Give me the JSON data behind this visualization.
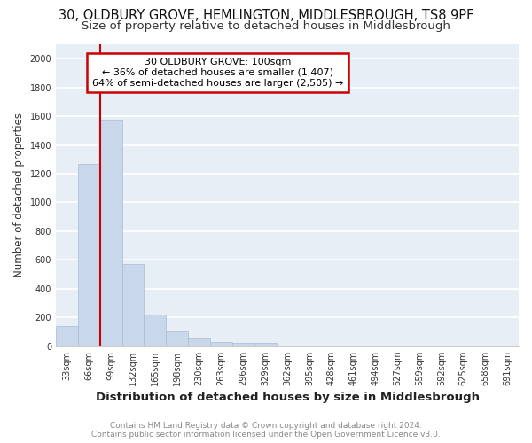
{
  "title1": "30, OLDBURY GROVE, HEMLINGTON, MIDDLESBROUGH, TS8 9PF",
  "title2": "Size of property relative to detached houses in Middlesbrough",
  "xlabel": "Distribution of detached houses by size in Middlesbrough",
  "ylabel": "Number of detached properties",
  "categories": [
    "33sqm",
    "66sqm",
    "99sqm",
    "132sqm",
    "165sqm",
    "198sqm",
    "230sqm",
    "263sqm",
    "296sqm",
    "329sqm",
    "362sqm",
    "395sqm",
    "428sqm",
    "461sqm",
    "494sqm",
    "527sqm",
    "559sqm",
    "592sqm",
    "625sqm",
    "658sqm",
    "691sqm"
  ],
  "values": [
    140,
    1270,
    1570,
    570,
    220,
    100,
    55,
    30,
    20,
    20,
    0,
    0,
    0,
    0,
    0,
    0,
    0,
    0,
    0,
    0,
    0
  ],
  "bar_color": "#c8d8ea",
  "bar_edge_color": "#a8bdd0",
  "vline_index": 2,
  "vline_color": "#cc0000",
  "annotation_title": "30 OLDBURY GROVE: 100sqm",
  "annotation_line1": "← 36% of detached houses are smaller (1,407)",
  "annotation_line2": "64% of semi-detached houses are larger (2,505) →",
  "annotation_box_color": "#cc0000",
  "ylim": [
    0,
    2100
  ],
  "yticks": [
    0,
    200,
    400,
    600,
    800,
    1000,
    1200,
    1400,
    1600,
    1800,
    2000
  ],
  "footer1": "Contains HM Land Registry data © Crown copyright and database right 2024.",
  "footer2": "Contains public sector information licensed under the Open Government Licence v3.0.",
  "plot_bg_color": "#e8eef5",
  "fig_bg_color": "#ffffff",
  "grid_color": "#ffffff",
  "title1_fontsize": 10.5,
  "title2_fontsize": 9.5,
  "xlabel_fontsize": 9.5,
  "ylabel_fontsize": 8.5,
  "tick_fontsize": 7,
  "annot_fontsize": 8,
  "footer_fontsize": 6.5,
  "footer_color": "#888888"
}
